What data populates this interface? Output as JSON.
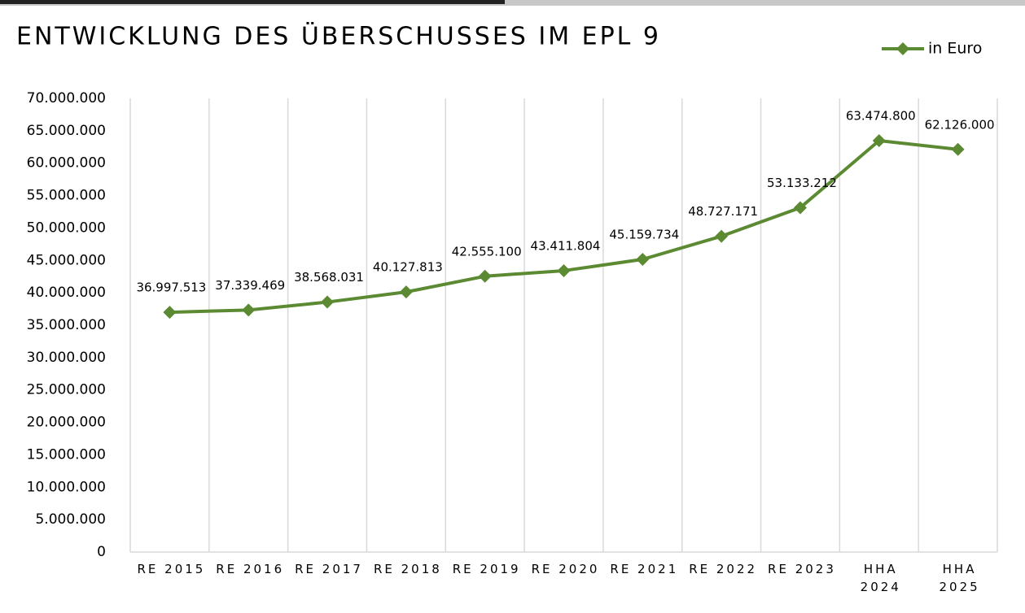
{
  "chart_data": {
    "type": "line",
    "title": "ENTWICKLUNG DES ÜBERSCHUSSES IM EPL 9",
    "categories": [
      "RE 2015",
      "RE 2016",
      "RE 2017",
      "RE 2018",
      "RE 2019",
      "RE 2020",
      "RE 2021",
      "RE 2022",
      "RE 2023",
      "HHA 2024",
      "HHA 2025"
    ],
    "series": [
      {
        "name": "in Euro",
        "color": "#5b8a32",
        "values": [
          36997513,
          37339469,
          38568031,
          40127813,
          42555100,
          43411804,
          45159734,
          48727171,
          53133212,
          63474800,
          62126000
        ],
        "value_labels": [
          "36.997.513",
          "37.339.469",
          "38.568.031",
          "40.127.813",
          "42.555.100",
          "43.411.804",
          "45.159.734",
          "48.727.171",
          "53.133.212",
          "63.474.800",
          "62.126.000"
        ]
      }
    ],
    "ylim": [
      0,
      70000000
    ],
    "yticks": [
      0,
      {
        "value": 5000000,
        "label": "5.000.000"
      },
      {
        "value": 10000000,
        "label": "10.000.000"
      },
      {
        "value": 15000000,
        "label": "15.000.000"
      },
      {
        "value": 20000000,
        "label": "20.000.000"
      },
      {
        "value": 25000000,
        "label": "25.000.000"
      },
      {
        "value": 30000000,
        "label": "30.000.000"
      },
      {
        "value": 35000000,
        "label": "35.000.000"
      },
      {
        "value": 40000000,
        "label": "40.000.000"
      },
      {
        "value": 45000000,
        "label": "45.000.000"
      },
      {
        "value": 50000000,
        "label": "50.000.000"
      },
      {
        "value": 55000000,
        "label": "55.000.000"
      },
      {
        "value": 60000000,
        "label": "60.000.000"
      },
      {
        "value": 65000000,
        "label": "65.000.000"
      },
      {
        "value": 70000000,
        "label": "70.000.000"
      }
    ],
    "legend": "top-right"
  }
}
